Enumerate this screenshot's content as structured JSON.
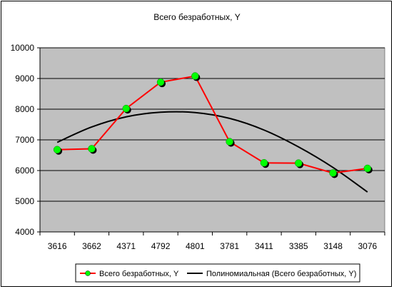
{
  "chart_data": {
    "type": "line",
    "title": "Всего безработных, Y",
    "xlabel": "",
    "ylabel": "",
    "categories": [
      "3616",
      "3662",
      "4371",
      "4792",
      "4801",
      "3781",
      "3411",
      "3385",
      "3148",
      "3076"
    ],
    "ylim": [
      4000,
      10000
    ],
    "yticks": [
      4000,
      5000,
      6000,
      7000,
      8000,
      9000,
      10000
    ],
    "grid": true,
    "legend_position": "bottom",
    "series": [
      {
        "name": "Всего безработных, Y",
        "values": [
          6680,
          6710,
          8020,
          8880,
          9080,
          6940,
          6250,
          6240,
          5920,
          6070
        ],
        "color": "#ff0000",
        "marker_color": "#00ff00"
      },
      {
        "name": "Полиномиальная (Всего безработных, Y)",
        "values": [
          6920,
          7420,
          7750,
          7900,
          7890,
          7700,
          7320,
          6770,
          6100,
          5300
        ],
        "color": "#000000",
        "smooth": true
      }
    ],
    "plot_background": "#c0c0c0"
  }
}
